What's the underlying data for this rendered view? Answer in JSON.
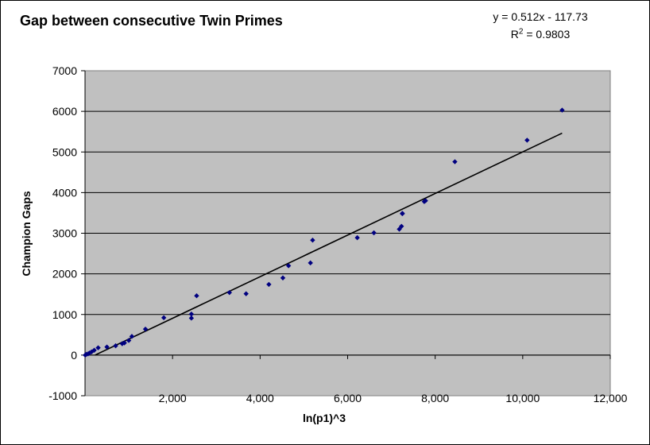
{
  "chart_data": {
    "type": "scatter",
    "title": "Gap between consecutive Twin Primes",
    "xlabel": "ln(p1)^3",
    "ylabel": "Champion Gaps",
    "xlim": [
      0,
      12000
    ],
    "ylim": [
      -1000,
      7000
    ],
    "x_ticks": [
      "",
      "2,000",
      "4,000",
      "6,000",
      "8,000",
      "10,000",
      "12,000"
    ],
    "y_ticks": [
      "-1000",
      "0",
      "1000",
      "2000",
      "3000",
      "4000",
      "5000",
      "6000",
      "7000"
    ],
    "grid": "horizontal",
    "plot_background": "#c0c0c0",
    "marker_color": "#000080",
    "trendline": {
      "type": "linear",
      "equation_text": "y = 0.512x - 117.73",
      "r2_label": "R",
      "r2_sup": "2",
      "r2_value": " = 0.9803",
      "slope": 0.512,
      "intercept": -117.73,
      "x_start": 230,
      "x_end": 10900,
      "color": "#000000"
    },
    "series": [
      {
        "x": [
          5,
          30,
          70,
          100,
          150,
          210,
          300,
          500,
          700,
          850,
          900,
          1000,
          1070,
          1380,
          1800,
          2430,
          2430,
          2550,
          3300,
          3680,
          4200,
          4520,
          4650,
          5150,
          5200,
          6220,
          6600,
          7180,
          7230,
          7250,
          7250,
          7750,
          7780,
          8450,
          10100,
          10900
        ],
        "y": [
          0,
          20,
          30,
          50,
          80,
          120,
          180,
          200,
          230,
          280,
          300,
          360,
          460,
          640,
          920,
          910,
          1010,
          1460,
          1540,
          1510,
          1740,
          1900,
          2200,
          2270,
          2830,
          2890,
          3010,
          3100,
          3170,
          3480,
          3490,
          3780,
          3800,
          4760,
          5290,
          6030
        ]
      }
    ]
  }
}
